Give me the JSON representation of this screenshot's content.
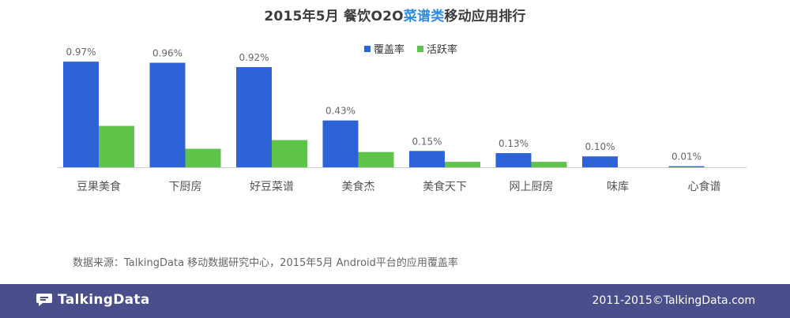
{
  "title": {
    "prefix": "2015年5月  餐饮O2O",
    "highlight": "菜谱类",
    "suffix": "移动应用排行"
  },
  "colors": {
    "coverage": "#2e62d8",
    "activity": "#5ec44a",
    "highlight": "#2d8be0",
    "footer": "#4a4f8c"
  },
  "legend": [
    "覆盖率",
    "活跃率"
  ],
  "chart_data": {
    "type": "bar",
    "categories": [
      "豆果美食",
      "下厨房",
      "好豆菜谱",
      "美食杰",
      "美食天下",
      "网上厨房",
      "味库",
      "心食谱"
    ],
    "series": [
      {
        "name": "覆盖率",
        "values": [
          0.97,
          0.96,
          0.92,
          0.43,
          0.15,
          0.13,
          0.1,
          0.01
        ]
      },
      {
        "name": "活跃率",
        "values": [
          0.38,
          0.17,
          0.25,
          0.14,
          0.05,
          0.05,
          0.0,
          0.0
        ]
      }
    ],
    "data_labels": [
      "0.97%",
      "0.96%",
      "0.92%",
      "0.43%",
      "0.15%",
      "0.13%",
      "0.10%",
      "0.01%"
    ],
    "ylim": [
      0,
      1.0
    ],
    "grid": false,
    "legend_position": "top"
  },
  "source": "数据来源：TalkingData 移动数据研究中心，2015年5月 Android平台的应用覆盖率",
  "footer": {
    "logo_text": "TalkingData",
    "copyright": "2011-2015©TalkingData.com"
  }
}
